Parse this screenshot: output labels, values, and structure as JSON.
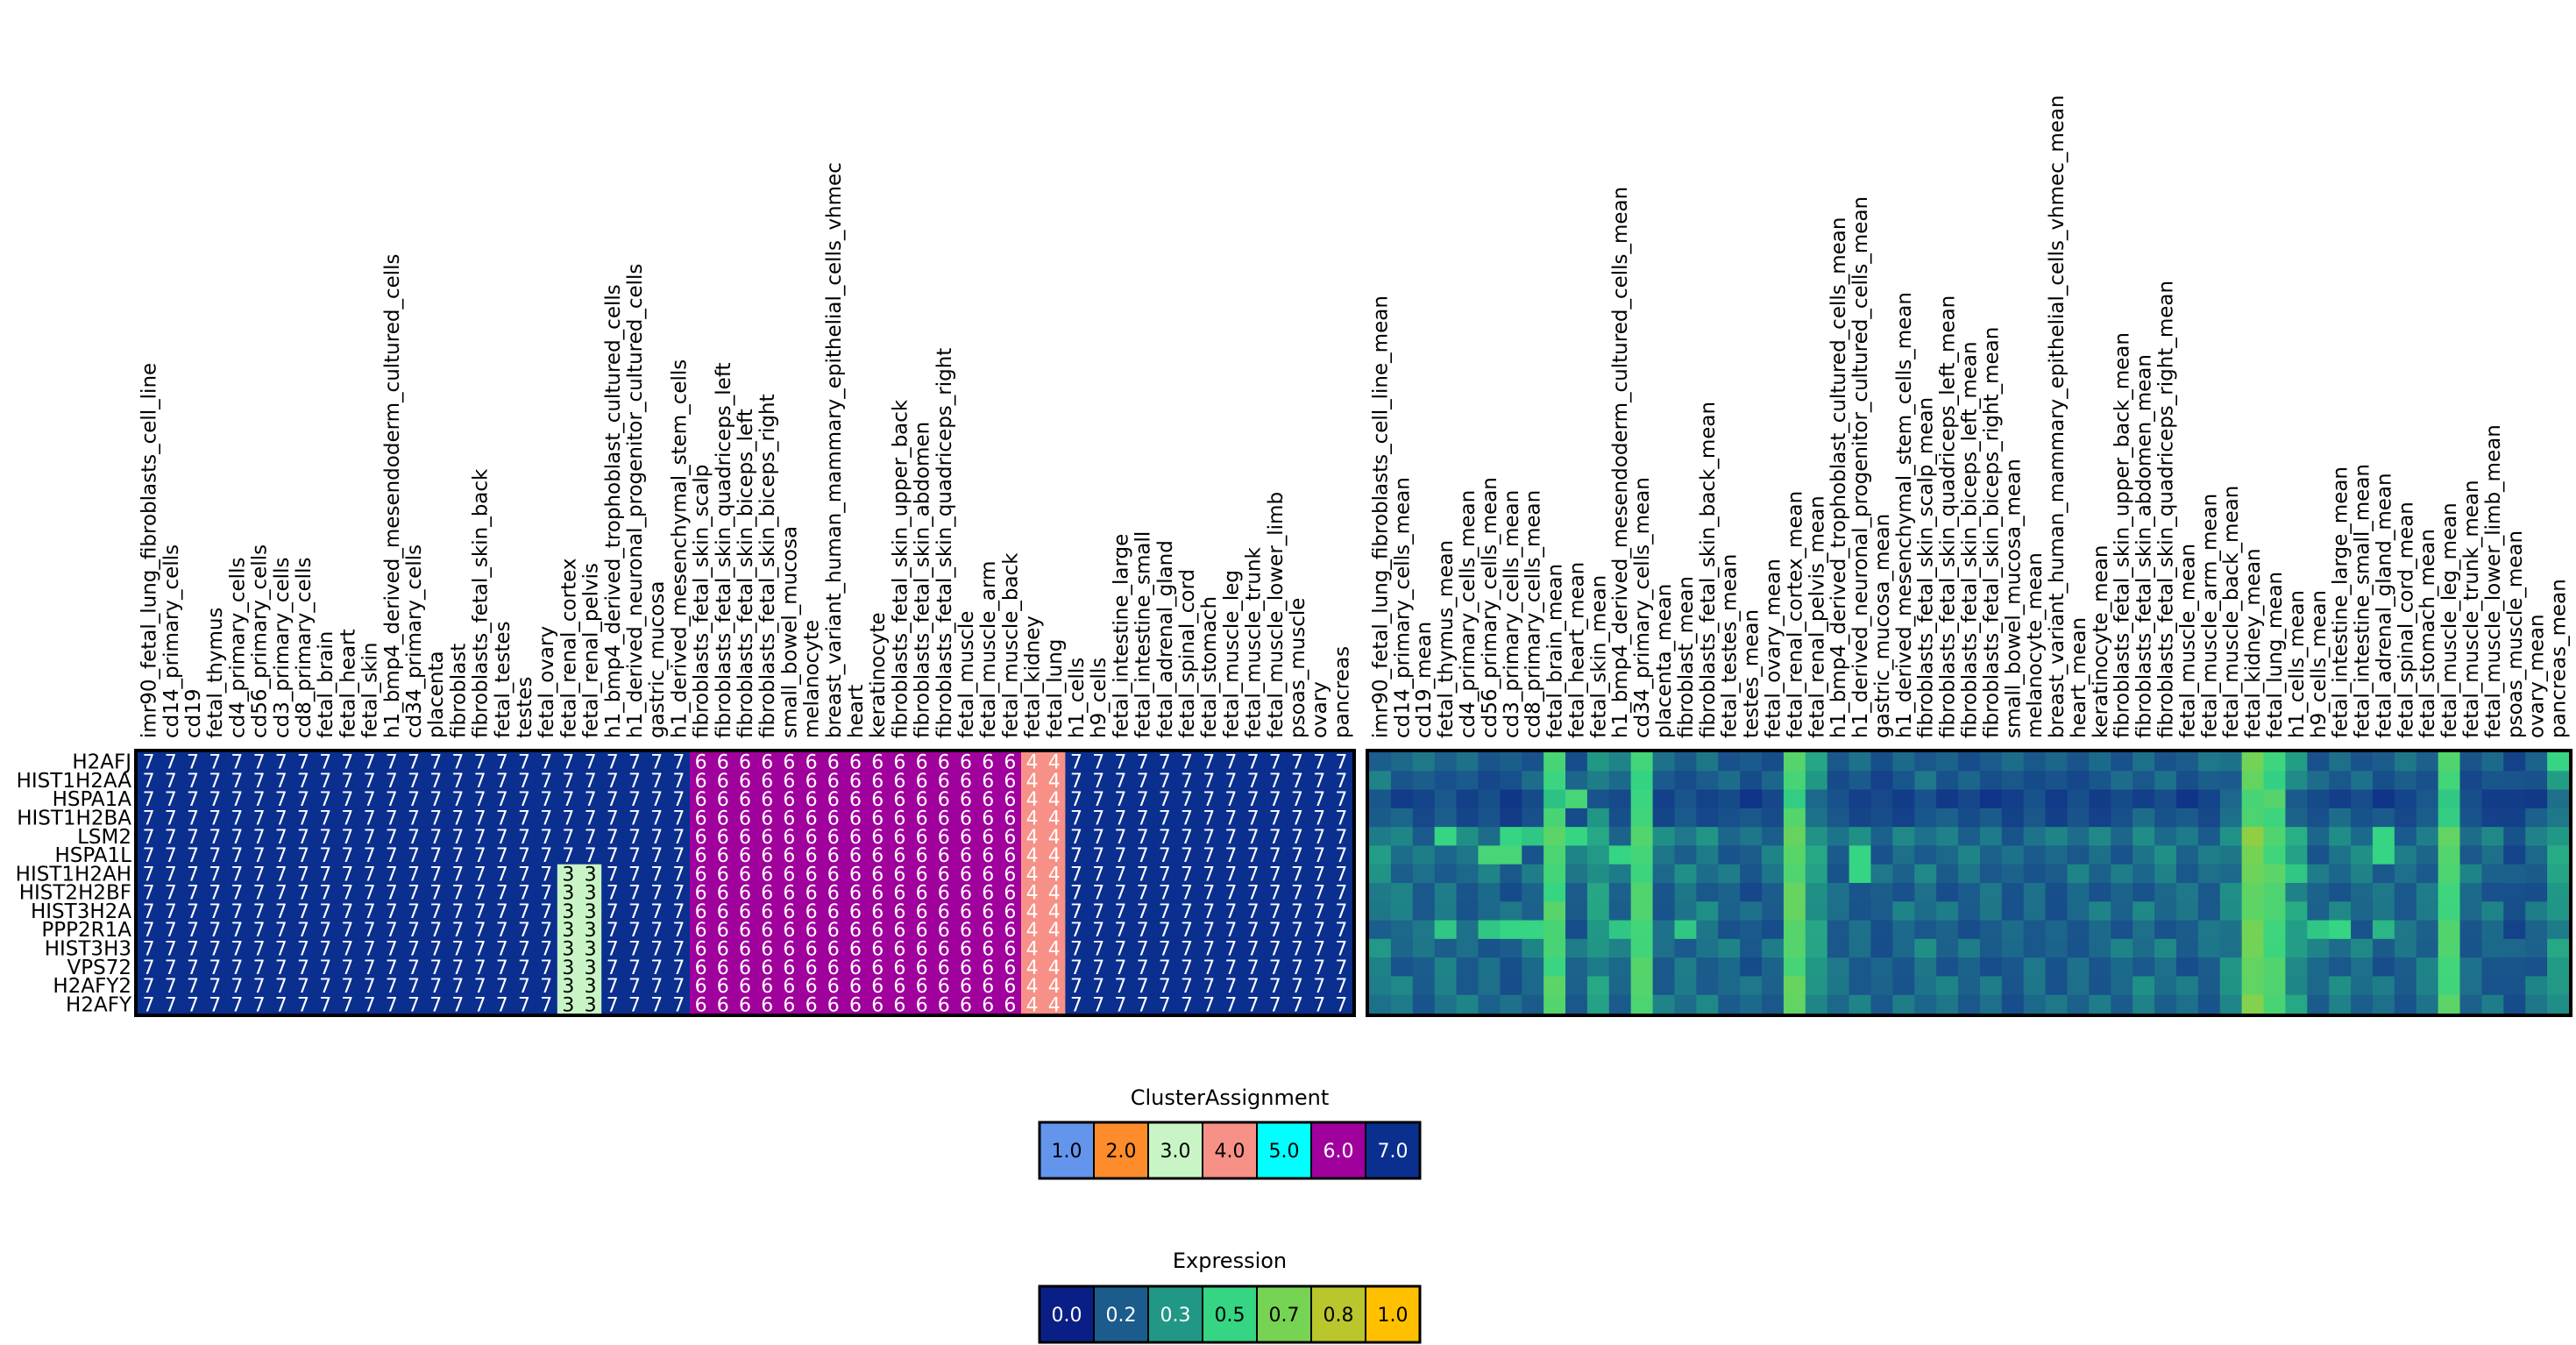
{
  "chart_data": [
    {
      "type": "heatmap",
      "title": "",
      "value_label": "cluster assignment",
      "columns": [
        "imr90_fetal_lung_fibroblasts_cell_line",
        "cd14_primary_cells",
        "cd19",
        "fetal_thymus",
        "cd4_primary_cells",
        "cd56_primary_cells",
        "cd3_primary_cells",
        "cd8_primary_cells",
        "fetal_brain",
        "fetal_heart",
        "fetal_skin",
        "h1_bmp4_derived_mesendoderm_cultured_cells",
        "cd34_primary_cells",
        "placenta",
        "fibroblast",
        "fibroblasts_fetal_skin_back",
        "fetal_testes",
        "testes",
        "fetal_ovary",
        "fetal_renal_cortex",
        "fetal_renal_pelvis",
        "h1_bmp4_derived_trophoblast_cultured_cells",
        "h1_derived_neuronal_progenitor_cultured_cells",
        "gastric_mucosa",
        "h1_derived_mesenchymal_stem_cells",
        "fibroblasts_fetal_skin_scalp",
        "fibroblasts_fetal_skin_quadriceps_left",
        "fibroblasts_fetal_skin_biceps_left",
        "fibroblasts_fetal_skin_biceps_right",
        "small_bowel_mucosa",
        "melanocyte",
        "breast_variant_human_mammary_epithelial_cells_vhmec",
        "heart",
        "keratinocyte",
        "fibroblasts_fetal_skin_upper_back",
        "fibroblasts_fetal_skin_abdomen",
        "fibroblasts_fetal_skin_quadriceps_right",
        "fetal_muscle",
        "fetal_muscle_arm",
        "fetal_muscle_back",
        "fetal_kidney",
        "fetal_lung",
        "h1_cells",
        "h9_cells",
        "fetal_intestine_large",
        "fetal_intestine_small",
        "fetal_adrenal_gland",
        "fetal_spinal_cord",
        "fetal_stomach",
        "fetal_muscle_leg",
        "fetal_muscle_trunk",
        "fetal_muscle_lower_limb",
        "psoas_muscle",
        "ovary",
        "pancreas"
      ],
      "rows": [
        "H2AFJ",
        "HIST1H2AA",
        "HSPA1A",
        "HIST1H2BA",
        "LSM2",
        "HSPA1L",
        "HIST1H2AH",
        "HIST2H2BF",
        "HIST3H2A",
        "PPP2R1A",
        "HIST3H3",
        "VPS72",
        "H2AFY2",
        "H2AFY"
      ],
      "groups": [
        {
          "cluster": 7,
          "start": 0,
          "end": 18
        },
        {
          "cluster": "fetal_renal",
          "start": 19,
          "end": 20,
          "top_rows_cluster": 7,
          "bottom_rows_cluster": 3,
          "split_at_row": 6
        },
        {
          "cluster": 7,
          "start": 21,
          "end": 24
        },
        {
          "cluster": 6,
          "start": 25,
          "end": 39
        },
        {
          "cluster": 4,
          "start": 40,
          "end": 41
        },
        {
          "cluster": 7,
          "start": 42,
          "end": 54
        }
      ]
    },
    {
      "type": "heatmap",
      "title": "",
      "value_label": "mean expression",
      "columns": [
        "imr90_fetal_lung_fibroblasts_cell_line_mean",
        "cd14_primary_cells_mean",
        "cd19_mean",
        "fetal_thymus_mean",
        "cd4_primary_cells_mean",
        "cd56_primary_cells_mean",
        "cd3_primary_cells_mean",
        "cd8_primary_cells_mean",
        "fetal_brain_mean",
        "fetal_heart_mean",
        "fetal_skin_mean",
        "h1_bmp4_derived_mesendoderm_cultured_cells_mean",
        "cd34_primary_cells_mean",
        "placenta_mean",
        "fibroblast_mean",
        "fibroblasts_fetal_skin_back_mean",
        "fetal_testes_mean",
        "testes_mean",
        "fetal_ovary_mean",
        "fetal_renal_cortex_mean",
        "fetal_renal_pelvis_mean",
        "h1_bmp4_derived_trophoblast_cultured_cells_mean",
        "h1_derived_neuronal_progenitor_cultured_cells_mean",
        "gastric_mucosa_mean",
        "h1_derived_mesenchymal_stem_cells_mean",
        "fibroblasts_fetal_skin_scalp_mean",
        "fibroblasts_fetal_skin_quadriceps_left_mean",
        "fibroblasts_fetal_skin_biceps_left_mean",
        "fibroblasts_fetal_skin_biceps_right_mean",
        "small_bowel_mucosa_mean",
        "melanocyte_mean",
        "breast_variant_human_mammary_epithelial_cells_vhmec_mean",
        "heart_mean",
        "keratinocyte_mean",
        "fibroblasts_fetal_skin_upper_back_mean",
        "fibroblasts_fetal_skin_abdomen_mean",
        "fibroblasts_fetal_skin_quadriceps_right_mean",
        "fetal_muscle_mean",
        "fetal_muscle_arm_mean",
        "fetal_muscle_back_mean",
        "fetal_kidney_mean",
        "fetal_lung_mean",
        "h1_cells_mean",
        "h9_cells_mean",
        "fetal_intestine_large_mean",
        "fetal_intestine_small_mean",
        "fetal_adrenal_gland_mean",
        "fetal_spinal_cord_mean",
        "fetal_stomach_mean",
        "fetal_muscle_leg_mean",
        "fetal_muscle_trunk_mean",
        "fetal_muscle_lower_limb_mean",
        "psoas_muscle_mean",
        "ovary_mean",
        "pancreas_mean"
      ],
      "rows": [
        "H2AFJ",
        "HIST1H2AA",
        "HSPA1A",
        "HIST1H2BA",
        "LSM2",
        "HSPA1L",
        "HIST1H2AH",
        "HIST2H2BF",
        "HIST3H2A",
        "PPP2R1A",
        "HIST3H3",
        "VPS72",
        "H2AFY2",
        "H2AFY"
      ],
      "base_profile": [
        0.25,
        0.22,
        0.2,
        0.22,
        0.2,
        0.2,
        0.18,
        0.2,
        0.55,
        0.2,
        0.3,
        0.22,
        0.55,
        0.2,
        0.22,
        0.22,
        0.2,
        0.18,
        0.2,
        0.6,
        0.3,
        0.2,
        0.2,
        0.18,
        0.2,
        0.22,
        0.2,
        0.2,
        0.2,
        0.18,
        0.2,
        0.18,
        0.2,
        0.2,
        0.2,
        0.22,
        0.22,
        0.2,
        0.2,
        0.25,
        0.65,
        0.55,
        0.3,
        0.2,
        0.22,
        0.22,
        0.2,
        0.2,
        0.22,
        0.55,
        0.2,
        0.2,
        0.15,
        0.2,
        0.3
      ],
      "row_shift": [
        0,
        -0.02,
        -0.08,
        -0.04,
        0.04,
        0.02,
        0.02,
        0,
        0.02,
        0,
        0.02,
        0,
        0.02,
        0.02
      ],
      "highlights": [
        {
          "row": 0,
          "col": 54,
          "value": 0.5
        },
        {
          "row": 2,
          "col": 9,
          "value": 0.55
        },
        {
          "row": 2,
          "col": 41,
          "value": 0.6
        },
        {
          "row": 4,
          "col": 3,
          "value": 0.5
        },
        {
          "row": 4,
          "col": 6,
          "value": 0.5
        },
        {
          "row": 4,
          "col": 7,
          "value": 0.45
        },
        {
          "row": 4,
          "col": 9,
          "value": 0.5
        },
        {
          "row": 4,
          "col": 46,
          "value": 0.5
        },
        {
          "row": 5,
          "col": 5,
          "value": 0.55
        },
        {
          "row": 5,
          "col": 6,
          "value": 0.55
        },
        {
          "row": 5,
          "col": 11,
          "value": 0.5
        },
        {
          "row": 5,
          "col": 22,
          "value": 0.5
        },
        {
          "row": 5,
          "col": 46,
          "value": 0.5
        },
        {
          "row": 6,
          "col": 22,
          "value": 0.5
        },
        {
          "row": 6,
          "col": 42,
          "value": 0.45
        },
        {
          "row": 9,
          "col": 3,
          "value": 0.45
        },
        {
          "row": 9,
          "col": 5,
          "value": 0.45
        },
        {
          "row": 9,
          "col": 6,
          "value": 0.5
        },
        {
          "row": 9,
          "col": 7,
          "value": 0.5
        },
        {
          "row": 9,
          "col": 11,
          "value": 0.45
        },
        {
          "row": 9,
          "col": 14,
          "value": 0.45
        },
        {
          "row": 9,
          "col": 43,
          "value": 0.45
        },
        {
          "row": 9,
          "col": 44,
          "value": 0.5
        },
        {
          "row": 9,
          "col": 46,
          "value": 0.4
        }
      ]
    }
  ],
  "legends": {
    "cluster": {
      "title": "ClusterAssignment",
      "items": [
        {
          "label": "1.0",
          "color": "#6495ed"
        },
        {
          "label": "2.0",
          "color": "#ff8c2a"
        },
        {
          "label": "3.0",
          "color": "#c9f5c6"
        },
        {
          "label": "4.0",
          "color": "#f79086"
        },
        {
          "label": "5.0",
          "color": "#00ffff"
        },
        {
          "label": "6.0",
          "color": "#a0009c"
        },
        {
          "label": "7.0",
          "color": "#0a2f8f"
        }
      ]
    },
    "expression": {
      "title": "Expression",
      "items": [
        {
          "label": "0.0",
          "color": "#0a1f85"
        },
        {
          "label": "0.2",
          "color": "#1b5c8c"
        },
        {
          "label": "0.3",
          "color": "#219786"
        },
        {
          "label": "0.5",
          "color": "#35d583"
        },
        {
          "label": "0.7",
          "color": "#77d353"
        },
        {
          "label": "0.8",
          "color": "#b9c72c"
        },
        {
          "label": "1.0",
          "color": "#ffc000"
        }
      ]
    }
  }
}
